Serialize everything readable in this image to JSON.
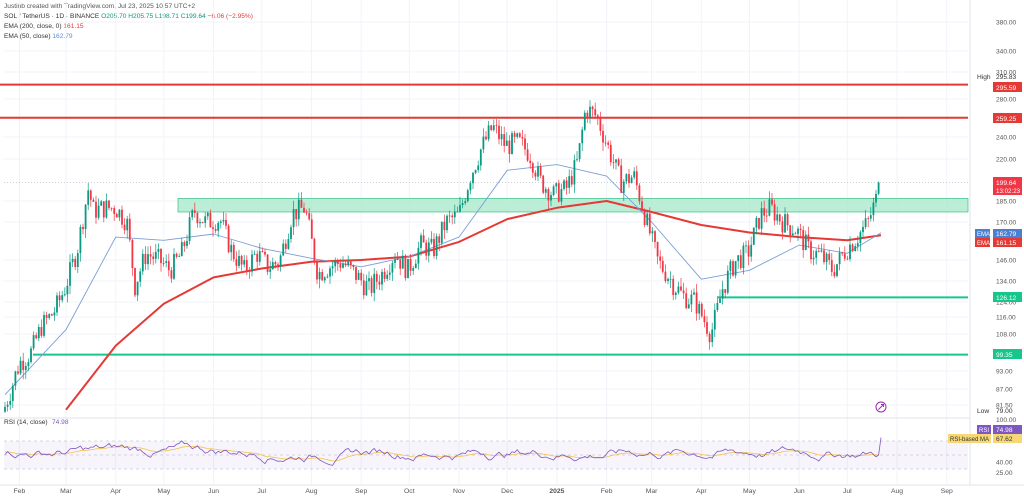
{
  "header": {
    "attribution": "Justinb created with TradingView.com, Jul 23, 2025 10:57 UTC+2",
    "symbol": "SOL / TetherUS · 1D · BINANCE",
    "ohlc": {
      "o": "O205.70",
      "h": "H205.75",
      "l": "L198.71",
      "c": "C199.64",
      "chg": "−6.06 (−2.95%)"
    },
    "ema200_label": "EMA (200, close, 0)",
    "ema200_value": "161.15",
    "ema50_label": "EMA (50, close)",
    "ema50_value": "162.79"
  },
  "price_axis": {
    "ticks": [
      "380.00",
      "340.00",
      "310.00",
      "280.00",
      "260.00",
      "240.00",
      "220.00",
      "185.00",
      "170.00",
      "146.00",
      "134.00",
      "124.00",
      "116.00",
      "108.00",
      "93.00",
      "87.00",
      "81.50"
    ],
    "high_label": "High",
    "high_value": "295.83",
    "low_label": "Low",
    "low_value": "79.00"
  },
  "tags": {
    "r_295": "295.59",
    "r_259": "259.25",
    "last_price": "199.64",
    "countdown": "13:02:23",
    "ema50_name": "EMA",
    "ema50_value": "162.79",
    "ema200_name": "EMA",
    "ema200_value": "161.15",
    "s_126": "126.12",
    "s_99": "99.35"
  },
  "rsi": {
    "header_label": "RSI (14, close)",
    "header_value": "74.98",
    "axis_ticks": [
      "100.00",
      "40.00",
      "25.00"
    ],
    "rsi_name": "RSI",
    "rsi_value": "74.98",
    "ma_name": "RSI-based MA",
    "ma_value": "67.62"
  },
  "x_axis": {
    "labels": [
      "Feb",
      "Mar",
      "Apr",
      "May",
      "Jun",
      "Jul",
      "Aug",
      "Sep",
      "Oct",
      "Nov",
      "Dec",
      "2025",
      "Feb",
      "Mar",
      "Apr",
      "May",
      "Jun",
      "Jul",
      "Aug",
      "Sep"
    ]
  },
  "colors": {
    "up": "#089981",
    "down": "#f23645",
    "ema200": "#e53935",
    "ema50": "#7b9fd4",
    "resistance": "#e53935",
    "support": "#17c68a",
    "zone": "#a5e8c9",
    "rsi": "#7e57c2"
  },
  "chart_data": {
    "type": "candlestick",
    "symbol": "SOL / TetherUS",
    "interval": "1D",
    "y_scale": "log",
    "horizontal_levels": [
      {
        "kind": "resistance",
        "value": 295.59
      },
      {
        "kind": "resistance",
        "value": 259.25
      },
      {
        "kind": "support",
        "value": 126.12
      },
      {
        "kind": "support",
        "value": 99.35
      }
    ],
    "zone": {
      "low": 177,
      "high": 187
    },
    "price_path": {
      "x": [
        "2024-01-23",
        "2024-02-01",
        "2024-02-08",
        "2024-02-15",
        "2024-02-22",
        "2024-03-01",
        "2024-03-08",
        "2024-03-15",
        "2024-03-18",
        "2024-03-25",
        "2024-04-01",
        "2024-04-08",
        "2024-04-13",
        "2024-04-20",
        "2024-04-28",
        "2024-05-05",
        "2024-05-12",
        "2024-05-20",
        "2024-05-27",
        "2024-06-05",
        "2024-06-12",
        "2024-06-20",
        "2024-06-28",
        "2024-07-05",
        "2024-07-12",
        "2024-07-20",
        "2024-07-28",
        "2024-08-05",
        "2024-08-12",
        "2024-08-20",
        "2024-08-28",
        "2024-09-06",
        "2024-09-14",
        "2024-09-22",
        "2024-09-30",
        "2024-10-08",
        "2024-10-16",
        "2024-10-24",
        "2024-11-01",
        "2024-11-08",
        "2024-11-15",
        "2024-11-22",
        "2024-11-30",
        "2024-12-08",
        "2024-12-15",
        "2024-12-22",
        "2024-12-30",
        "2025-01-07",
        "2025-01-14",
        "2025-01-19",
        "2025-01-26",
        "2025-02-02",
        "2025-02-10",
        "2025-02-18",
        "2025-02-26",
        "2025-03-05",
        "2025-03-12",
        "2025-03-20",
        "2025-03-28",
        "2025-04-07",
        "2025-04-14",
        "2025-04-22",
        "2025-04-30",
        "2025-05-08",
        "2025-05-14",
        "2025-05-22",
        "2025-05-30",
        "2025-06-07",
        "2025-06-15",
        "2025-06-22",
        "2025-06-30",
        "2025-07-07",
        "2025-07-14",
        "2025-07-20",
        "2025-07-22"
      ],
      "close": [
        81,
        96,
        100,
        112,
        118,
        132,
        152,
        195,
        178,
        180,
        180,
        170,
        132,
        150,
        146,
        140,
        150,
        178,
        170,
        172,
        152,
        140,
        150,
        142,
        145,
        176,
        180,
        138,
        142,
        145,
        138,
        130,
        138,
        150,
        140,
        155,
        152,
        170,
        175,
        205,
        230,
        250,
        232,
        235,
        225,
        200,
        190,
        195,
        218,
        270,
        260,
        230,
        200,
        205,
        170,
        145,
        136,
        127,
        124,
        108,
        130,
        145,
        150,
        175,
        180,
        170,
        165,
        152,
        148,
        140,
        152,
        160,
        170,
        190,
        199.64
      ]
    },
    "ema50_path": {
      "x": [
        "2024-01-23",
        "2024-03-01",
        "2024-04-01",
        "2024-05-01",
        "2024-06-01",
        "2024-07-01",
        "2024-08-01",
        "2024-09-01",
        "2024-10-01",
        "2024-11-01",
        "2024-12-01",
        "2025-01-01",
        "2025-02-01",
        "2025-03-01",
        "2025-04-01",
        "2025-05-01",
        "2025-06-01",
        "2025-07-01",
        "2025-07-22"
      ],
      "value": [
        85,
        110,
        160,
        158,
        162,
        153,
        147,
        142,
        148,
        160,
        210,
        215,
        205,
        170,
        135,
        140,
        155,
        150,
        162.79
      ]
    },
    "ema200_path": {
      "x": [
        "2024-03-01",
        "2024-04-01",
        "2024-05-01",
        "2024-06-01",
        "2024-07-01",
        "2024-08-01",
        "2024-09-01",
        "2024-10-01",
        "2024-11-01",
        "2024-12-01",
        "2025-01-01",
        "2025-02-01",
        "2025-03-01",
        "2025-04-01",
        "2025-05-01",
        "2025-06-01",
        "2025-07-01",
        "2025-07-22"
      ],
      "value": [
        80,
        103,
        123,
        136,
        141,
        145,
        146,
        148,
        157,
        172,
        180,
        185,
        177,
        168,
        163,
        160,
        158,
        161.15
      ]
    },
    "rsi": {
      "series": [
        {
          "name": "RSI (14, close)",
          "last": 74.98
        },
        {
          "name": "RSI-based MA",
          "last": 67.62
        }
      ],
      "bands": [
        70,
        30
      ]
    }
  }
}
